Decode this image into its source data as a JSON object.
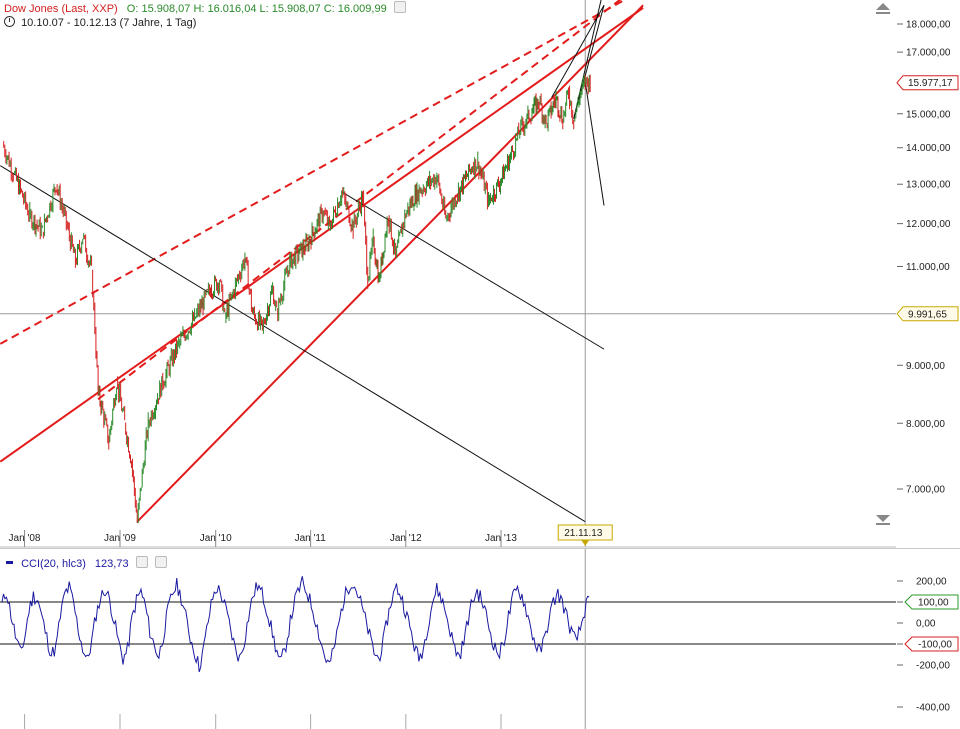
{
  "header": {
    "title": "Dow Jones (Last, XXP)",
    "ohlc": "O: 15.908,07  H: 16.016,04  L: 15.908,07  C: 16.009,99",
    "range": "10.10.07 - 10.12.13 (7 Jahre, 1 Tag)"
  },
  "cci_header": {
    "label": "CCI(20, hlc3)",
    "value": "123,73"
  },
  "colors": {
    "candle_up": "#2a8a2a",
    "candle_down": "#d42020",
    "trend_red": "#e31b1b",
    "trend_black": "#111111",
    "cci_line": "#1a1aa0",
    "price_tag": "#d42020",
    "level_tag": "#c8a800",
    "cci_pos_tag": "#2a9a2a",
    "cci_neg_tag": "#d42020",
    "grid": "#9a9a9a"
  },
  "chart_data": [
    {
      "type": "line",
      "title": "Dow Jones (Last, XXP)",
      "subtitle": "10.10.07 - 10.12.13 (7 Jahre, 1 Tag)",
      "x_range": [
        "2007-10-10",
        "2013-12-10"
      ],
      "ylim": [
        6400,
        18600
      ],
      "x_tick_labels": [
        "Jan '08",
        "Jan '09",
        "Jan '10",
        "Jan '11",
        "Jan '12",
        "Jan '13"
      ],
      "y_tick_labels": [
        "18.000,00",
        "17.000,00",
        "15.000,00",
        "14.000,00",
        "13.000,00",
        "12.000,00",
        "11.000,00",
        "9.000,00",
        "8.000,00",
        "7.000,00"
      ],
      "series": [
        {
          "values_x": [
            "2007-10-10",
            "2007-11-20",
            "2008-01-22",
            "2008-03-10",
            "2008-05-02",
            "2008-07-15",
            "2008-08-12",
            "2008-09-15",
            "2008-10-10",
            "2008-10-28",
            "2008-11-20",
            "2008-12-20",
            "2009-01-20",
            "2009-02-15",
            "2009-03-09",
            "2009-04-20",
            "2009-06-15",
            "2009-08-15",
            "2009-10-15",
            "2009-12-15",
            "2010-01-19",
            "2010-02-08",
            "2010-04-26",
            "2010-05-25",
            "2010-07-02",
            "2010-08-10",
            "2010-08-26",
            "2010-10-15",
            "2010-12-20",
            "2011-02-20",
            "2011-03-16",
            "2011-05-02",
            "2011-06-15",
            "2011-07-21",
            "2011-08-10",
            "2011-08-31",
            "2011-09-22",
            "2011-10-27",
            "2011-11-25",
            "2011-12-30",
            "2012-02-15",
            "2012-05-01",
            "2012-06-04",
            "2012-07-15",
            "2012-09-15",
            "2012-10-05",
            "2012-11-15",
            "2012-12-31",
            "2013-02-15",
            "2013-03-15",
            "2013-05-28",
            "2013-06-24",
            "2013-08-01",
            "2013-08-27",
            "2013-09-18",
            "2013-10-08",
            "2013-11-01",
            "2013-11-21",
            "2013-12-10"
          ],
          "values": [
            14100,
            13300,
            12200,
            11800,
            13000,
            11100,
            11700,
            10900,
            8500,
            8200,
            7700,
            8700,
            8000,
            7400,
            6550,
            8000,
            8700,
            9400,
            9900,
            10500,
            10700,
            9900,
            11200,
            10000,
            9700,
            10500,
            10000,
            11100,
            11500,
            12300,
            11900,
            12800,
            11900,
            12700,
            10700,
            11600,
            10700,
            12200,
            11200,
            12200,
            12800,
            13200,
            12100,
            12700,
            13500,
            13600,
            12550,
            13100,
            13900,
            14500,
            15400,
            14700,
            15500,
            14800,
            15700,
            14800,
            15600,
            16000,
            16010
          ]
        }
      ],
      "annotations": {
        "price_tag": "15.977,17",
        "level_tag": "9.991,65",
        "date_tag": "21.11.13",
        "crosshair_date": "2013-11-21",
        "crosshair_value": 9991.65
      }
    },
    {
      "type": "line",
      "title": "CCI(20, hlc3)",
      "last_value": 123.73,
      "ylim": [
        -420,
        240
      ],
      "y_tick_labels": [
        "200,00",
        "100,00",
        "0,00",
        "-100,00",
        "-200,00",
        "-400,00"
      ],
      "reference_lines": [
        100,
        -100
      ],
      "series": [
        {
          "values": [
            90,
            150,
            40,
            -60,
            -140,
            -80,
            60,
            130,
            110,
            20,
            -70,
            -150,
            -120,
            30,
            140,
            170,
            90,
            -30,
            -120,
            -180,
            -90,
            40,
            120,
            160,
            110,
            10,
            -90,
            -170,
            -130,
            20,
            110,
            150,
            80,
            -40,
            -110,
            -160,
            -60,
            60,
            140,
            180,
            120,
            30,
            -70,
            -140,
            -210,
            -120,
            10,
            120,
            170,
            130,
            60,
            -30,
            -120,
            -170,
            -90,
            30,
            130,
            180,
            140,
            70,
            -20,
            -110,
            -190,
            -140,
            -30,
            80,
            150,
            190,
            150,
            90,
            10,
            -80,
            -160,
            -200,
            -130,
            -20,
            90,
            160,
            200,
            160,
            100,
            20,
            -60,
            -140,
            -170,
            -100,
            20,
            120,
            170,
            130,
            60,
            -20,
            -110,
            -170,
            -120,
            -10,
            100,
            160,
            120,
            50,
            -40,
            -120,
            -160,
            -90,
            20,
            110,
            150,
            110,
            40,
            -50,
            -120,
            -150,
            -80,
            30,
            120,
            160,
            130,
            60,
            -30,
            -100,
            -140,
            -80,
            20,
            100,
            140,
            100,
            30,
            -40,
            -90,
            -30,
            60,
            124
          ]
        }
      ],
      "annotations": {
        "pos_tag": "100,00",
        "neg_tag": "-100,00"
      }
    }
  ]
}
